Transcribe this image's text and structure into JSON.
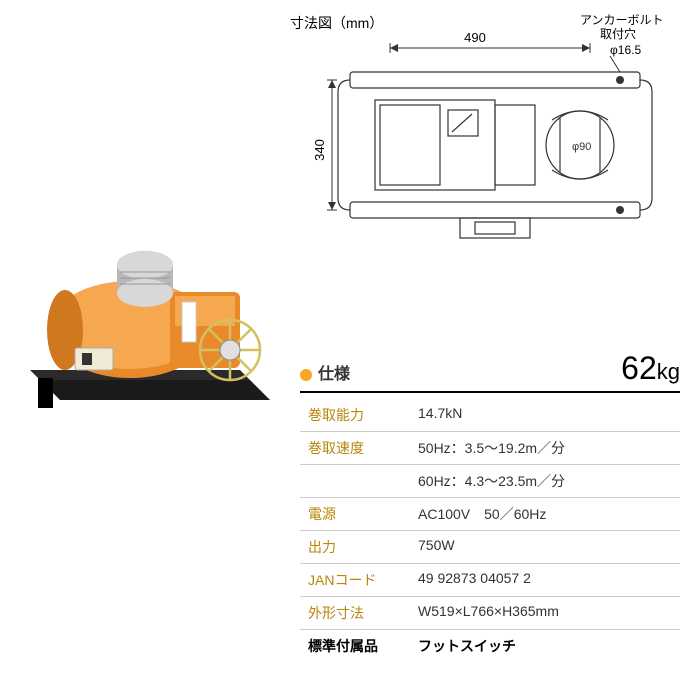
{
  "diagram": {
    "title": "寸法図（mm）",
    "anchor_label": "アンカーボルト\n取付穴",
    "phi_label": "φ16.5",
    "width_dim": "490",
    "height_dim": "340",
    "phi90": "φ90",
    "stroke_color": "#333333",
    "dim_fontsize": 13
  },
  "photo": {
    "body_color": "#e88a2a",
    "drum_color": "#c0c0c0",
    "base_color": "#1a1a1a",
    "highlight": "#f5a850"
  },
  "spec": {
    "title": "仕様",
    "weight_value": "62",
    "weight_unit": "kg",
    "bullet_color": "#f9a825",
    "label_color": "#b8860b",
    "rows": [
      {
        "label": "巻取能力",
        "value": "14.7kN"
      },
      {
        "label": "巻取速度",
        "value": "50Hz：3.5～19.2m／分"
      },
      {
        "label": "",
        "value": "60Hz：4.3～23.5m／分"
      },
      {
        "label": "電源",
        "value": "AC100V　50／60Hz"
      },
      {
        "label": "出力",
        "value": "750W"
      },
      {
        "label": "JANコード",
        "value": "49 92873 04057 2"
      },
      {
        "label": "外形寸法",
        "value": "W519×L766×H365mm"
      }
    ],
    "accessory_label": "標準付属品",
    "accessory_value": "フットスイッチ"
  }
}
